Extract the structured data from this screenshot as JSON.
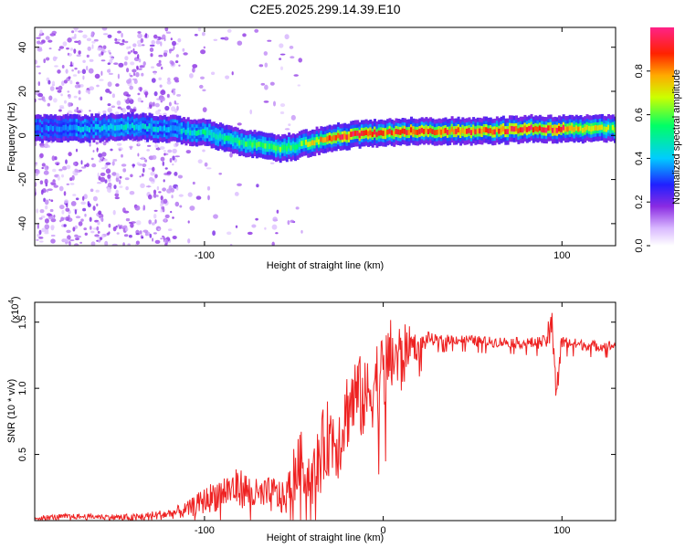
{
  "page": {
    "title": "C2E5.2025.299.14.39.E10"
  },
  "chart_data": [
    {
      "type": "heatmap",
      "title": "C2E5.2025.299.14.39.E10",
      "xlabel": "Height of straight line (km)",
      "ylabel": "Frequency (Hz)",
      "xlim": [
        -195,
        130
      ],
      "ylim": [
        -50,
        49
      ],
      "x_ticks": [
        -100,
        100
      ],
      "x_tick_labels": [
        "-100",
        "100"
      ],
      "y_ticks": [
        -40,
        -20,
        0,
        20,
        40
      ],
      "y_tick_labels": [
        "-40",
        "-20",
        "0",
        "20",
        "40"
      ],
      "colorbar": {
        "label": "Normalized spectral amplitude",
        "range": [
          0,
          1
        ],
        "ticks": [
          0,
          0.2,
          0.4,
          0.6,
          0.8
        ],
        "tick_labels": [
          "0.0",
          "0.2",
          "0.4",
          "0.6",
          "0.8"
        ]
      },
      "ridge": {
        "description_points_x": [
          -195,
          -170,
          -140,
          -120,
          -100,
          -80,
          -60,
          -50,
          -40,
          -30,
          -20,
          -10,
          0,
          10,
          30,
          60,
          80,
          100,
          130
        ],
        "frequency_hz": [
          3,
          3,
          4,
          3,
          1,
          -3,
          -6,
          -5,
          -3,
          -1,
          0,
          1,
          1,
          2,
          2,
          2,
          3,
          3,
          3
        ],
        "amplitude": [
          0.35,
          0.4,
          0.45,
          0.4,
          0.5,
          0.55,
          0.6,
          0.55,
          0.7,
          0.85,
          0.9,
          0.9,
          0.85,
          0.9,
          0.9,
          0.85,
          0.95,
          0.9,
          0.6
        ]
      }
    },
    {
      "type": "line",
      "title": "",
      "xlabel": "Height of straight line (km)",
      "ylabel": "SNR (10 * v/v)",
      "exponent_label": "(x10",
      "exponent_power": "4",
      "exponent_close": ")",
      "xlim": [
        -195,
        130
      ],
      "ylim": [
        0,
        1.65
      ],
      "x_ticks": [
        -100,
        0,
        100
      ],
      "x_tick_labels": [
        "-100",
        "0",
        "100"
      ],
      "y_ticks": [
        0.5,
        1.0,
        1.5
      ],
      "y_tick_labels": [
        "0.5",
        "1.0",
        "1.5"
      ],
      "color": "#ee2222",
      "series": [
        {
          "name": "SNR",
          "x": [
            -195,
            -180,
            -160,
            -140,
            -120,
            -110,
            -100,
            -90,
            -80,
            -70,
            -60,
            -55,
            -50,
            -45,
            -40,
            -35,
            -30,
            -25,
            -20,
            -15,
            -10,
            -5,
            0,
            5,
            10,
            15,
            20,
            25,
            30,
            40,
            50,
            60,
            70,
            80,
            90,
            95,
            97,
            100,
            110,
            120,
            130
          ],
          "values": [
            0.02,
            0.03,
            0.03,
            0.02,
            0.05,
            0.08,
            0.15,
            0.22,
            0.25,
            0.18,
            0.2,
            0.15,
            0.35,
            0.45,
            0.3,
            0.5,
            0.65,
            0.6,
            0.85,
            0.95,
            0.9,
            1.05,
            1.1,
            1.25,
            1.2,
            1.35,
            1.3,
            1.38,
            1.36,
            1.37,
            1.36,
            1.35,
            1.35,
            1.34,
            1.35,
            1.45,
            1.0,
            1.35,
            1.33,
            1.32,
            1.32
          ],
          "noise_amplitude": [
            0.02,
            0.02,
            0.02,
            0.03,
            0.04,
            0.06,
            0.1,
            0.14,
            0.15,
            0.13,
            0.14,
            0.12,
            0.22,
            0.25,
            0.2,
            0.3,
            0.3,
            0.3,
            0.32,
            0.34,
            0.3,
            0.34,
            0.32,
            0.3,
            0.3,
            0.12,
            0.1,
            0.05,
            0.04,
            0.04,
            0.04,
            0.04,
            0.04,
            0.04,
            0.05,
            0.18,
            0.3,
            0.05,
            0.04,
            0.04,
            0.04
          ]
        }
      ]
    }
  ]
}
